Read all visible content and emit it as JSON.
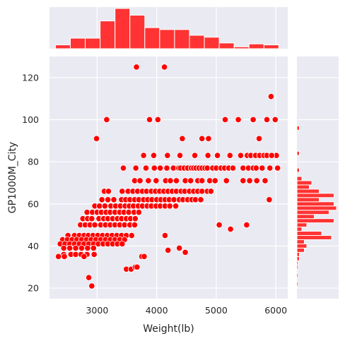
{
  "chart_data": {
    "type": "scatter",
    "xlabel": "Weight(lb)",
    "ylabel": "GP1000M_City",
    "xlim": [
      2200,
      6200
    ],
    "ylim": [
      15,
      130
    ],
    "xticks": [
      3000,
      4000,
      5000,
      6000
    ],
    "yticks": [
      20,
      40,
      60,
      80,
      100,
      120
    ],
    "grid": true,
    "colors": {
      "point": "#ff0000",
      "point_edge": "#ffffff",
      "hist": "#ff3333",
      "hist_edge": "#ffffff",
      "plot_bg": "#eaeaf2",
      "grid": "#ffffff"
    },
    "marginal_x": {
      "bin_edges": [
        2300,
        2550,
        2800,
        3050,
        3300,
        3550,
        3800,
        4050,
        4300,
        4550,
        4800,
        5050,
        5300,
        5550,
        5800,
        6050
      ],
      "counts": [
        4,
        11,
        11,
        29,
        42,
        35,
        22,
        20,
        20,
        14,
        12,
        6,
        2,
        5,
        4
      ]
    },
    "marginal_y": {
      "bin_edges": [
        21,
        23,
        25,
        27,
        29,
        31,
        33,
        35,
        37,
        39,
        41,
        43,
        45,
        47,
        49,
        51,
        53,
        55,
        57,
        59,
        61,
        63,
        65,
        67,
        69,
        71,
        73,
        75,
        77,
        79,
        81,
        83,
        85,
        87,
        89,
        91,
        93,
        95,
        97,
        99,
        101,
        103,
        105,
        107,
        109,
        111,
        113,
        115,
        117,
        119,
        121,
        123,
        125
      ],
      "counts": [
        1,
        0,
        1,
        0,
        1,
        1,
        2,
        2,
        6,
        8,
        6,
        28,
        20,
        4,
        8,
        30,
        14,
        26,
        32,
        30,
        18,
        30,
        18,
        10,
        12,
        4,
        0,
        2,
        0,
        0,
        0,
        2,
        0,
        0,
        0,
        0,
        0,
        2,
        0,
        0,
        0,
        0,
        0,
        0,
        0,
        0,
        0,
        0,
        0,
        0,
        0,
        0
      ]
    },
    "points": [
      [
        3660,
        125
      ],
      [
        4130,
        125
      ],
      [
        3160,
        100
      ],
      [
        3880,
        100
      ],
      [
        4020,
        100
      ],
      [
        2990,
        91
      ],
      [
        4430,
        91
      ],
      [
        4760,
        91
      ],
      [
        4870,
        91
      ],
      [
        5720,
        91
      ],
      [
        5920,
        111
      ],
      [
        5150,
        100
      ],
      [
        5370,
        100
      ],
      [
        5620,
        100
      ],
      [
        5850,
        100
      ],
      [
        5990,
        100
      ],
      [
        3780,
        83
      ],
      [
        3950,
        83
      ],
      [
        4180,
        83
      ],
      [
        4390,
        83
      ],
      [
        4640,
        83
      ],
      [
        4860,
        83
      ],
      [
        5020,
        83
      ],
      [
        5230,
        83
      ],
      [
        5410,
        83
      ],
      [
        5520,
        83
      ],
      [
        5580,
        83
      ],
      [
        5660,
        83
      ],
      [
        5730,
        83
      ],
      [
        5800,
        83
      ],
      [
        5850,
        83
      ],
      [
        6010,
        83
      ],
      [
        5930,
        83
      ],
      [
        3440,
        77
      ],
      [
        3650,
        77
      ],
      [
        3820,
        77
      ],
      [
        3960,
        77
      ],
      [
        4060,
        77
      ],
      [
        4170,
        77
      ],
      [
        4280,
        77
      ],
      [
        4370,
        77
      ],
      [
        4400,
        77
      ],
      [
        4460,
        77
      ],
      [
        4520,
        77
      ],
      [
        4580,
        77
      ],
      [
        4620,
        77
      ],
      [
        4660,
        77
      ],
      [
        4710,
        77
      ],
      [
        4760,
        77
      ],
      [
        4810,
        77
      ],
      [
        4850,
        77
      ],
      [
        4940,
        77
      ],
      [
        5000,
        77
      ],
      [
        5080,
        77
      ],
      [
        5140,
        77
      ],
      [
        5210,
        77
      ],
      [
        5280,
        77
      ],
      [
        5450,
        77
      ],
      [
        5540,
        77
      ],
      [
        5620,
        77
      ],
      [
        5670,
        77
      ],
      [
        5770,
        77
      ],
      [
        5900,
        77
      ],
      [
        6030,
        77
      ],
      [
        3630,
        71
      ],
      [
        3720,
        71
      ],
      [
        3860,
        71
      ],
      [
        3990,
        71
      ],
      [
        4150,
        71
      ],
      [
        4230,
        71
      ],
      [
        4330,
        71
      ],
      [
        4480,
        71
      ],
      [
        4570,
        71
      ],
      [
        4690,
        71
      ],
      [
        4760,
        71
      ],
      [
        4890,
        71
      ],
      [
        4980,
        71
      ],
      [
        5170,
        71
      ],
      [
        5450,
        71
      ],
      [
        5560,
        71
      ],
      [
        5680,
        71
      ],
      [
        5820,
        71
      ],
      [
        3120,
        66
      ],
      [
        3190,
        66
      ],
      [
        3420,
        66
      ],
      [
        3520,
        66
      ],
      [
        3600,
        66
      ],
      [
        3680,
        66
      ],
      [
        3760,
        66
      ],
      [
        3830,
        66
      ],
      [
        3910,
        66
      ],
      [
        3980,
        66
      ],
      [
        4050,
        66
      ],
      [
        4120,
        66
      ],
      [
        4190,
        66
      ],
      [
        4260,
        66
      ],
      [
        4330,
        66
      ],
      [
        4410,
        66
      ],
      [
        4470,
        66
      ],
      [
        4550,
        66
      ],
      [
        4620,
        66
      ],
      [
        4690,
        66
      ],
      [
        4760,
        66
      ],
      [
        4850,
        66
      ],
      [
        4910,
        66
      ],
      [
        3080,
        62
      ],
      [
        3180,
        62
      ],
      [
        3280,
        62
      ],
      [
        3410,
        62
      ],
      [
        3480,
        62
      ],
      [
        3550,
        62
      ],
      [
        3630,
        62
      ],
      [
        3700,
        62
      ],
      [
        3780,
        62
      ],
      [
        3850,
        62
      ],
      [
        3920,
        62
      ],
      [
        4000,
        62
      ],
      [
        4070,
        62
      ],
      [
        4140,
        62
      ],
      [
        4210,
        62
      ],
      [
        4290,
        62
      ],
      [
        4380,
        62
      ],
      [
        4440,
        62
      ],
      [
        4520,
        62
      ],
      [
        4590,
        62
      ],
      [
        4650,
        62
      ],
      [
        4740,
        62
      ],
      [
        5890,
        62
      ],
      [
        2960,
        59
      ],
      [
        3040,
        59
      ],
      [
        3130,
        59
      ],
      [
        3230,
        59
      ],
      [
        3310,
        59
      ],
      [
        3390,
        59
      ],
      [
        3470,
        59
      ],
      [
        3540,
        59
      ],
      [
        3610,
        59
      ],
      [
        3690,
        59
      ],
      [
        3760,
        59
      ],
      [
        3840,
        59
      ],
      [
        3910,
        59
      ],
      [
        3990,
        59
      ],
      [
        4060,
        59
      ],
      [
        4140,
        59
      ],
      [
        4220,
        59
      ],
      [
        4320,
        59
      ],
      [
        2830,
        56
      ],
      [
        2920,
        56
      ],
      [
        3000,
        56
      ],
      [
        3070,
        56
      ],
      [
        3150,
        56
      ],
      [
        3220,
        56
      ],
      [
        3300,
        56
      ],
      [
        3380,
        56
      ],
      [
        3450,
        56
      ],
      [
        3530,
        56
      ],
      [
        3620,
        56
      ],
      [
        3700,
        56
      ],
      [
        2760,
        53
      ],
      [
        2840,
        53
      ],
      [
        2910,
        53
      ],
      [
        3030,
        53
      ],
      [
        3110,
        53
      ],
      [
        3180,
        53
      ],
      [
        3260,
        53
      ],
      [
        3340,
        53
      ],
      [
        3410,
        53
      ],
      [
        3490,
        53
      ],
      [
        3560,
        53
      ],
      [
        3640,
        53
      ],
      [
        2720,
        50
      ],
      [
        2800,
        50
      ],
      [
        2880,
        50
      ],
      [
        2960,
        50
      ],
      [
        3060,
        50
      ],
      [
        3140,
        50
      ],
      [
        3220,
        50
      ],
      [
        3300,
        50
      ],
      [
        3380,
        50
      ],
      [
        3460,
        50
      ],
      [
        3550,
        50
      ],
      [
        3630,
        50
      ],
      [
        5050,
        50
      ],
      [
        5510,
        50
      ],
      [
        5240,
        48
      ],
      [
        2510,
        45
      ],
      [
        2620,
        45
      ],
      [
        2700,
        45
      ],
      [
        2780,
        45
      ],
      [
        2850,
        45
      ],
      [
        2930,
        45
      ],
      [
        3010,
        45
      ],
      [
        3090,
        45
      ],
      [
        3170,
        45
      ],
      [
        3250,
        45
      ],
      [
        3330,
        45
      ],
      [
        3410,
        45
      ],
      [
        3490,
        45
      ],
      [
        3580,
        45
      ],
      [
        4140,
        45
      ],
      [
        2420,
        43
      ],
      [
        2500,
        43
      ],
      [
        2580,
        43
      ],
      [
        2660,
        43
      ],
      [
        2740,
        43
      ],
      [
        2820,
        43
      ],
      [
        2900,
        43
      ],
      [
        2980,
        43
      ],
      [
        3060,
        43
      ],
      [
        3140,
        43
      ],
      [
        3220,
        43
      ],
      [
        3300,
        43
      ],
      [
        3380,
        43
      ],
      [
        3460,
        43
      ],
      [
        2380,
        41
      ],
      [
        2460,
        41
      ],
      [
        2540,
        41
      ],
      [
        2620,
        41
      ],
      [
        2700,
        41
      ],
      [
        2780,
        41
      ],
      [
        2860,
        41
      ],
      [
        2940,
        41
      ],
      [
        3020,
        41
      ],
      [
        3100,
        41
      ],
      [
        3180,
        41
      ],
      [
        3260,
        41
      ],
      [
        3340,
        41
      ],
      [
        3420,
        41
      ],
      [
        2440,
        39
      ],
      [
        2540,
        39
      ],
      [
        2640,
        39
      ],
      [
        2740,
        39
      ],
      [
        2840,
        39
      ],
      [
        2940,
        39
      ],
      [
        4380,
        39
      ],
      [
        4190,
        38
      ],
      [
        4480,
        37
      ],
      [
        2440,
        36
      ],
      [
        2560,
        36
      ],
      [
        2640,
        36
      ],
      [
        2730,
        36
      ],
      [
        2830,
        36
      ],
      [
        2950,
        36
      ],
      [
        2350,
        35
      ],
      [
        2450,
        35
      ],
      [
        2780,
        35
      ],
      [
        3750,
        35
      ],
      [
        3790,
        35
      ],
      [
        3490,
        29
      ],
      [
        3570,
        29
      ],
      [
        3640,
        30
      ],
      [
        3670,
        30
      ],
      [
        2860,
        25
      ],
      [
        2910,
        21
      ]
    ]
  }
}
